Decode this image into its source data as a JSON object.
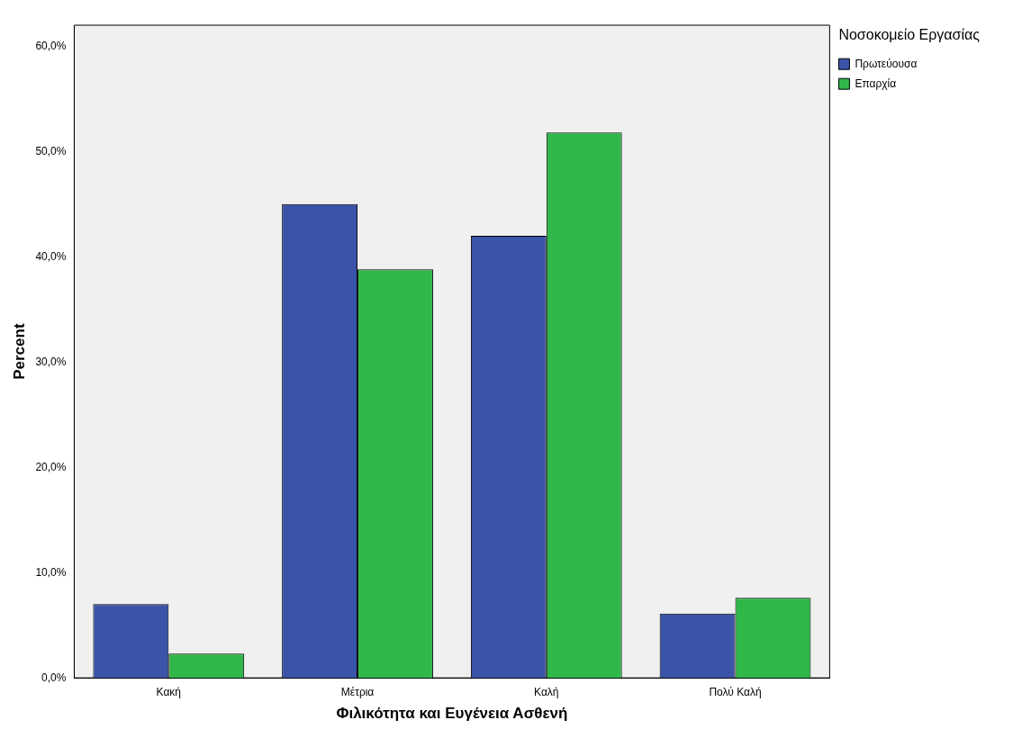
{
  "chart_data": {
    "type": "bar",
    "xlabel": "Φιλικότητα και Ευγένεια Ασθενή",
    "ylabel": "Percent",
    "legend_title": "Νοσοκομείο Εργασίας",
    "legend": "top right",
    "grid": false,
    "categories": [
      "Κακή",
      "Μέτρια",
      "Καλή",
      "Πολύ Καλή"
    ],
    "series": [
      {
        "name": "Πρωτεύουσα",
        "color": "#3b54a8",
        "values": [
          7.0,
          45.0,
          42.0,
          6.1
        ]
      },
      {
        "name": "Επαρχία",
        "color": "#30b74a",
        "values": [
          2.3,
          38.8,
          51.8,
          7.6
        ]
      }
    ],
    "ylim": [
      0,
      62
    ],
    "yticks": [
      {
        "value": 0,
        "label": "0,0%"
      },
      {
        "value": 10,
        "label": "10,0%"
      },
      {
        "value": 20,
        "label": "20,0%"
      },
      {
        "value": 30,
        "label": "30,0%"
      },
      {
        "value": 40,
        "label": "40,0%"
      },
      {
        "value": 50,
        "label": "50,0%"
      },
      {
        "value": 60,
        "label": "60,0%"
      }
    ]
  }
}
